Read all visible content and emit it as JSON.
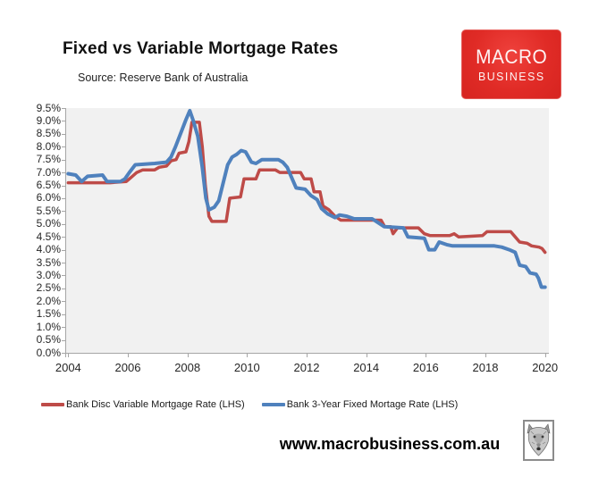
{
  "header": {
    "title": "Fixed vs Variable Mortgage Rates",
    "source": "Source: Reserve Bank of Australia"
  },
  "logo": {
    "line1": "MACRO",
    "line2": "BUSINESS",
    "bg_color": "#e02b26",
    "text_color": "#fdf3f3"
  },
  "footer": {
    "website": "www.macrobusiness.com.au",
    "wolf_icon": "wolf-head-icon"
  },
  "chart_data": {
    "type": "line",
    "title": "Fixed vs Variable Mortgage Rates",
    "xlabel": "",
    "ylabel": "",
    "xlim": [
      2003.9,
      2020.1
    ],
    "ylim": [
      0,
      9.5
    ],
    "grid": false,
    "plot_bg": "#f1f1f1",
    "axis_color": "#a6a6a6",
    "legend_position": "bottom",
    "x_ticks": [
      2004,
      2006,
      2008,
      2010,
      2012,
      2014,
      2016,
      2018,
      2020
    ],
    "x_tick_labels": [
      "2004",
      "2006",
      "2008",
      "2010",
      "2012",
      "2014",
      "2016",
      "2018",
      "2020"
    ],
    "y_tick_labels": [
      "9.5%",
      "9.0%",
      "8.5%",
      "8.0%",
      "7.5%",
      "7.0%",
      "6.5%",
      "6.0%",
      "5.5%",
      "5.0%",
      "4.5%",
      "4.0%",
      "3.5%",
      "3.0%",
      "2.5%",
      "2.0%",
      "1.5%",
      "1.0%",
      "0.5%",
      "0.0%"
    ],
    "y_tick_values": [
      9.5,
      9.0,
      8.5,
      8.0,
      7.5,
      7.0,
      6.5,
      6.0,
      5.5,
      5.0,
      4.5,
      4.0,
      3.5,
      3.0,
      2.5,
      2.0,
      1.5,
      1.0,
      0.5,
      0.0
    ],
    "series": [
      {
        "name": "Bank Disc Variable Mortgage Rate (LHS)",
        "color": "#be4b48",
        "line_width": 3.5,
        "points": [
          [
            2004.0,
            6.6
          ],
          [
            2004.7,
            6.6
          ],
          [
            2005.4,
            6.6
          ],
          [
            2005.95,
            6.65
          ],
          [
            2006.1,
            6.8
          ],
          [
            2006.3,
            7.0
          ],
          [
            2006.5,
            7.1
          ],
          [
            2006.9,
            7.1
          ],
          [
            2007.05,
            7.2
          ],
          [
            2007.3,
            7.25
          ],
          [
            2007.45,
            7.45
          ],
          [
            2007.62,
            7.5
          ],
          [
            2007.72,
            7.75
          ],
          [
            2007.95,
            7.8
          ],
          [
            2008.05,
            8.2
          ],
          [
            2008.15,
            8.95
          ],
          [
            2008.4,
            8.95
          ],
          [
            2008.5,
            8.0
          ],
          [
            2008.6,
            6.5
          ],
          [
            2008.72,
            5.3
          ],
          [
            2008.82,
            5.1
          ],
          [
            2009.3,
            5.1
          ],
          [
            2009.42,
            6.0
          ],
          [
            2009.78,
            6.05
          ],
          [
            2009.9,
            6.75
          ],
          [
            2010.3,
            6.75
          ],
          [
            2010.42,
            7.1
          ],
          [
            2010.95,
            7.1
          ],
          [
            2011.1,
            7.0
          ],
          [
            2011.8,
            7.0
          ],
          [
            2011.92,
            6.75
          ],
          [
            2012.15,
            6.75
          ],
          [
            2012.25,
            6.25
          ],
          [
            2012.45,
            6.25
          ],
          [
            2012.55,
            5.7
          ],
          [
            2012.75,
            5.55
          ],
          [
            2012.95,
            5.3
          ],
          [
            2013.15,
            5.15
          ],
          [
            2014.5,
            5.15
          ],
          [
            2014.62,
            4.9
          ],
          [
            2014.82,
            4.9
          ],
          [
            2014.9,
            4.62
          ],
          [
            2015.05,
            4.85
          ],
          [
            2015.75,
            4.85
          ],
          [
            2015.95,
            4.62
          ],
          [
            2016.15,
            4.55
          ],
          [
            2016.8,
            4.55
          ],
          [
            2016.95,
            4.62
          ],
          [
            2017.1,
            4.5
          ],
          [
            2017.9,
            4.55
          ],
          [
            2018.05,
            4.7
          ],
          [
            2018.85,
            4.7
          ],
          [
            2019.0,
            4.5
          ],
          [
            2019.15,
            4.3
          ],
          [
            2019.4,
            4.25
          ],
          [
            2019.55,
            4.15
          ],
          [
            2019.8,
            4.1
          ],
          [
            2019.9,
            4.05
          ],
          [
            2020.0,
            3.9
          ]
        ]
      },
      {
        "name": "Bank 3-Year Fixed Mortage Rate (LHS)",
        "color": "#4f81bd",
        "line_width": 4,
        "points": [
          [
            2004.0,
            6.95
          ],
          [
            2004.25,
            6.9
          ],
          [
            2004.45,
            6.65
          ],
          [
            2004.65,
            6.85
          ],
          [
            2005.15,
            6.9
          ],
          [
            2005.3,
            6.65
          ],
          [
            2005.75,
            6.65
          ],
          [
            2005.9,
            6.75
          ],
          [
            2006.05,
            7.0
          ],
          [
            2006.25,
            7.3
          ],
          [
            2006.9,
            7.35
          ],
          [
            2007.3,
            7.4
          ],
          [
            2007.45,
            7.6
          ],
          [
            2007.6,
            8.0
          ],
          [
            2007.8,
            8.6
          ],
          [
            2007.95,
            9.05
          ],
          [
            2008.08,
            9.4
          ],
          [
            2008.2,
            9.0
          ],
          [
            2008.35,
            8.4
          ],
          [
            2008.5,
            7.2
          ],
          [
            2008.62,
            6.0
          ],
          [
            2008.72,
            5.55
          ],
          [
            2008.9,
            5.65
          ],
          [
            2009.05,
            5.9
          ],
          [
            2009.2,
            6.6
          ],
          [
            2009.35,
            7.3
          ],
          [
            2009.5,
            7.6
          ],
          [
            2009.65,
            7.7
          ],
          [
            2009.8,
            7.85
          ],
          [
            2009.95,
            7.8
          ],
          [
            2010.15,
            7.4
          ],
          [
            2010.3,
            7.35
          ],
          [
            2010.5,
            7.5
          ],
          [
            2011.05,
            7.5
          ],
          [
            2011.2,
            7.4
          ],
          [
            2011.35,
            7.2
          ],
          [
            2011.5,
            6.8
          ],
          [
            2011.65,
            6.4
          ],
          [
            2011.95,
            6.35
          ],
          [
            2012.15,
            6.1
          ],
          [
            2012.35,
            5.95
          ],
          [
            2012.5,
            5.6
          ],
          [
            2012.7,
            5.4
          ],
          [
            2012.95,
            5.25
          ],
          [
            2013.1,
            5.35
          ],
          [
            2013.35,
            5.3
          ],
          [
            2013.6,
            5.2
          ],
          [
            2014.2,
            5.2
          ],
          [
            2014.4,
            5.05
          ],
          [
            2014.6,
            4.9
          ],
          [
            2015.25,
            4.85
          ],
          [
            2015.4,
            4.5
          ],
          [
            2015.95,
            4.45
          ],
          [
            2016.1,
            4.0
          ],
          [
            2016.3,
            4.0
          ],
          [
            2016.45,
            4.3
          ],
          [
            2016.7,
            4.2
          ],
          [
            2016.9,
            4.15
          ],
          [
            2018.3,
            4.15
          ],
          [
            2018.55,
            4.1
          ],
          [
            2018.8,
            4.0
          ],
          [
            2019.0,
            3.9
          ],
          [
            2019.15,
            3.4
          ],
          [
            2019.35,
            3.35
          ],
          [
            2019.5,
            3.1
          ],
          [
            2019.7,
            3.05
          ],
          [
            2019.78,
            2.9
          ],
          [
            2019.88,
            2.55
          ],
          [
            2020.0,
            2.55
          ]
        ]
      }
    ]
  }
}
